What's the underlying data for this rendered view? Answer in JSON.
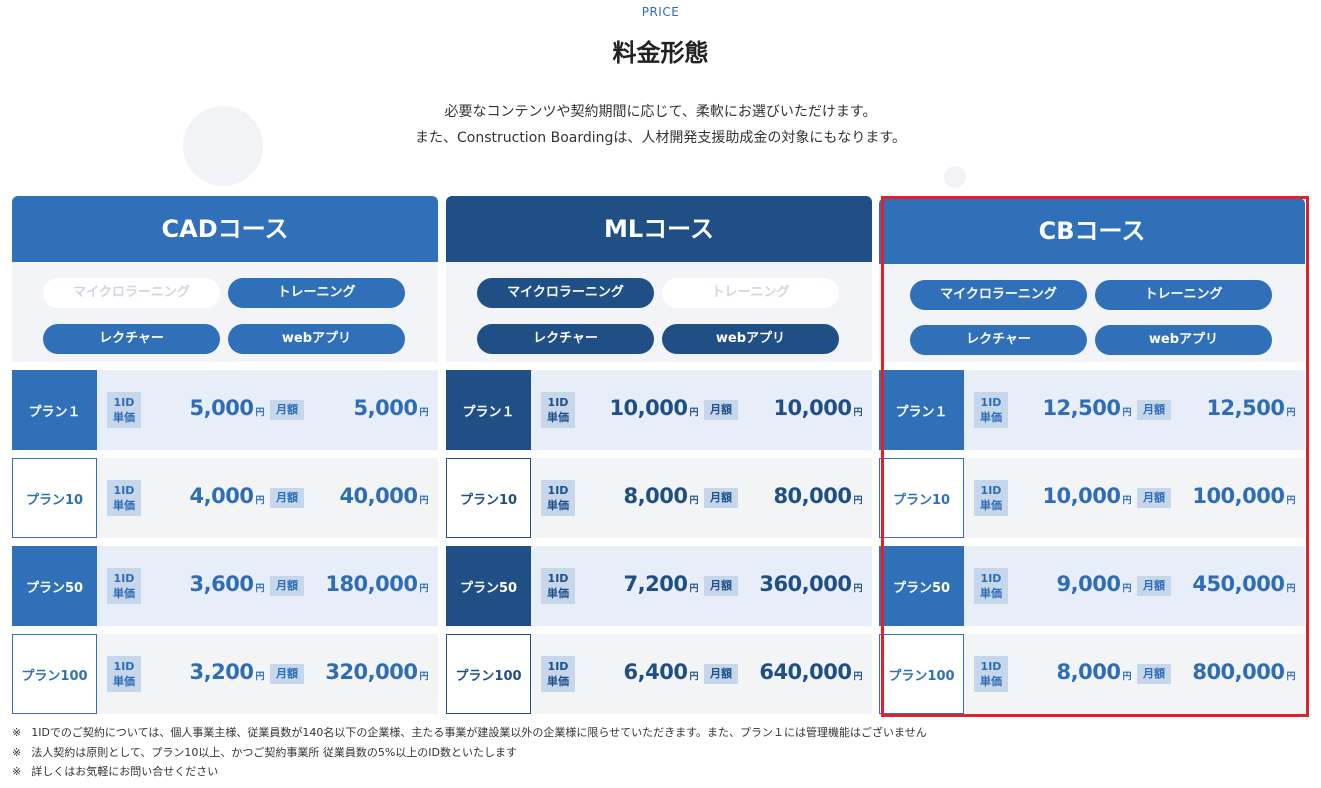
{
  "header": {
    "eyebrow": "PRICE",
    "title": "料金形態",
    "lead_line1": "必要なコンテンツや契約期間に応じて、柔軟にお選びいただけます。",
    "lead_line2": "また、Construction Boardingは、人材開発支援助成金の対象にもなります。"
  },
  "labels": {
    "unit_line1": "1ID",
    "unit_line2": "単価",
    "month": "月額",
    "yen": "円"
  },
  "courses": [
    {
      "name": "CADコース",
      "tags": [
        {
          "label": "マイクロラーニング",
          "active": false
        },
        {
          "label": "トレーニング",
          "active": true
        },
        {
          "label": "レクチャー",
          "active": true
        },
        {
          "label": "webアプリ",
          "active": true
        }
      ],
      "plans": [
        {
          "name": "プラン１",
          "unit_price": "5,000",
          "monthly": "5,000"
        },
        {
          "name": "プラン10",
          "unit_price": "4,000",
          "monthly": "40,000"
        },
        {
          "name": "プラン50",
          "unit_price": "3,600",
          "monthly": "180,000"
        },
        {
          "name": "プラン100",
          "unit_price": "3,200",
          "monthly": "320,000"
        }
      ]
    },
    {
      "name": "MLコース",
      "tags": [
        {
          "label": "マイクロラーニング",
          "active": true
        },
        {
          "label": "トレーニング",
          "active": false
        },
        {
          "label": "レクチャー",
          "active": true
        },
        {
          "label": "webアプリ",
          "active": true
        }
      ],
      "plans": [
        {
          "name": "プラン１",
          "unit_price": "10,000",
          "monthly": "10,000"
        },
        {
          "name": "プラン10",
          "unit_price": "8,000",
          "monthly": "80,000"
        },
        {
          "name": "プラン50",
          "unit_price": "7,200",
          "monthly": "360,000"
        },
        {
          "name": "プラン100",
          "unit_price": "6,400",
          "monthly": "640,000"
        }
      ]
    },
    {
      "name": "CBコース",
      "tags": [
        {
          "label": "マイクロラーニング",
          "active": true
        },
        {
          "label": "トレーニング",
          "active": true
        },
        {
          "label": "レクチャー",
          "active": true
        },
        {
          "label": "webアプリ",
          "active": true
        }
      ],
      "plans": [
        {
          "name": "プラン１",
          "unit_price": "12,500",
          "monthly": "12,500"
        },
        {
          "name": "プラン10",
          "unit_price": "10,000",
          "monthly": "100,000"
        },
        {
          "name": "プラン50",
          "unit_price": "9,000",
          "monthly": "450,000"
        },
        {
          "name": "プラン100",
          "unit_price": "8,000",
          "monthly": "800,000"
        }
      ]
    }
  ],
  "notes": {
    "mark": "※",
    "items": [
      "1IDでのご契約については、個人事業主様、従業員数が140名以下の企業様、主たる事業が建設業以外の企業様に限らせていただきます。また、プラン１には管理機能はございません",
      "法人契約は原則として、プラン10以上、かつご契約事業所 従業員数の5%以上のID数といたします",
      "詳しくはお気軽にお問い合せください"
    ]
  },
  "colors": {
    "primary_blue": "#2f70b8",
    "dark_navy": "#1f4f85",
    "highlight_red": "#e0202a"
  }
}
